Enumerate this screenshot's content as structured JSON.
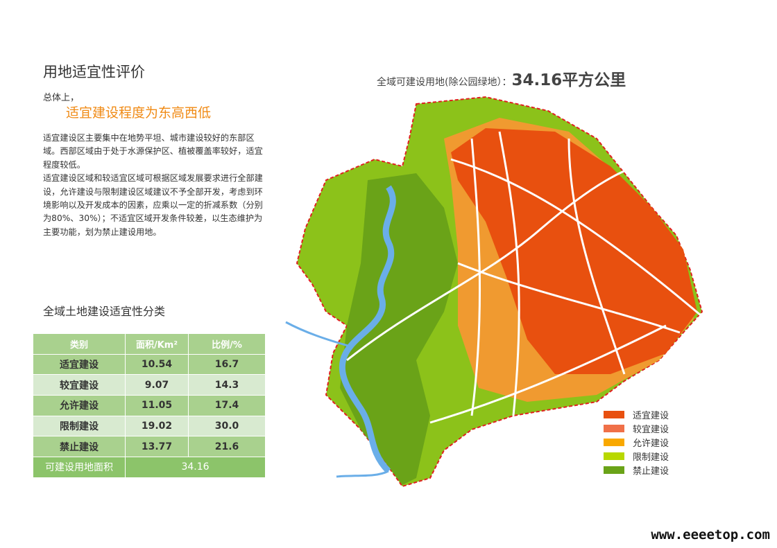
{
  "title": "用地适宜性评价",
  "intro": "总体上，",
  "highlight": "适宜建设程度为东高西低",
  "paragraphs": [
    "适宜建设区主要集中在地势平坦、城市建设较好的东部区域。西部区域由于处于水源保护区、植被覆盖率较好，适宜程度较低。",
    "适宜建设区域和较适宜区域可根据区域发展要求进行全部建设，允许建设与限制建设区域建议不予全部开发，考虑到环境影响以及开发成本的因素，应乘以一定的折减系数（分别为80%、30%）；不适宜区域开发条件较差，以生态维护为主要功能，划为禁止建设用地。"
  ],
  "table": {
    "title": "全域土地建设适宜性分类",
    "header": [
      "类别",
      "面积/Km²",
      "比例/%"
    ],
    "rows": [
      [
        "适宜建设",
        "10.54",
        "16.7"
      ],
      [
        "较宜建设",
        "9.07",
        "14.3"
      ],
      [
        "允许建设",
        "11.05",
        "17.4"
      ],
      [
        "限制建设",
        "19.02",
        "30.0"
      ],
      [
        "禁止建设",
        "13.77",
        "21.6"
      ]
    ],
    "footer": [
      "可建设用地面积",
      "34.16"
    ]
  },
  "map": {
    "label": "全域可建设用地(除公园绿地）：",
    "value": "34.16平方公里",
    "legend": [
      {
        "name": "适宜建设",
        "color": "#e8500f"
      },
      {
        "name": "较宜建设",
        "color": "#f07048"
      },
      {
        "name": "允许建设",
        "color": "#f9a800"
      },
      {
        "name": "限制建设",
        "color": "#b8d800"
      },
      {
        "name": "禁止建设",
        "color": "#6aa318"
      }
    ]
  },
  "watermark": "www.eeeetop.com"
}
